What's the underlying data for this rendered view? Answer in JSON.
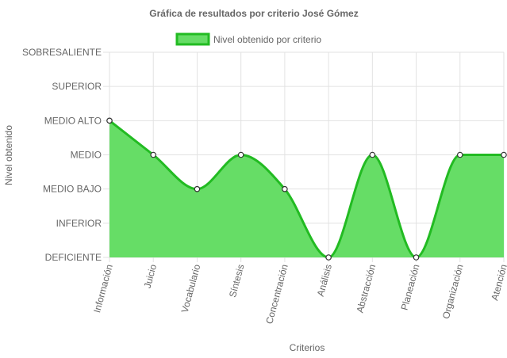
{
  "chart_data": {
    "type": "area",
    "title": "Gráfica de resultados por criterio José Gómez",
    "xlabel": "Criterios",
    "ylabel": "Nivel obtenido",
    "categories": [
      "Información",
      "Juicio",
      "Vocabulario",
      "Síntesis",
      "Concentración",
      "Análisis",
      "Abstracción",
      "Planeación",
      "Organización",
      "Atención"
    ],
    "levels": [
      "DEFICIENTE",
      "INFERIOR",
      "MEDIO BAJO",
      "MEDIO",
      "MEDIO ALTO",
      "SUPERIOR",
      "SOBRESALIENTE"
    ],
    "series": [
      {
        "name": "Nivel obtenido por criterio",
        "values": [
          4,
          3,
          2,
          3,
          2,
          0,
          3,
          0,
          3,
          3
        ]
      }
    ],
    "ylim": [
      0,
      6
    ],
    "grid": true,
    "legend": "top-center",
    "colors": {
      "fill": "#66dd66",
      "line": "#22bb22",
      "grid": "#e2e2e2",
      "text": "#666666",
      "point_fill": "#ffffff",
      "point_stroke": "#333333"
    }
  }
}
